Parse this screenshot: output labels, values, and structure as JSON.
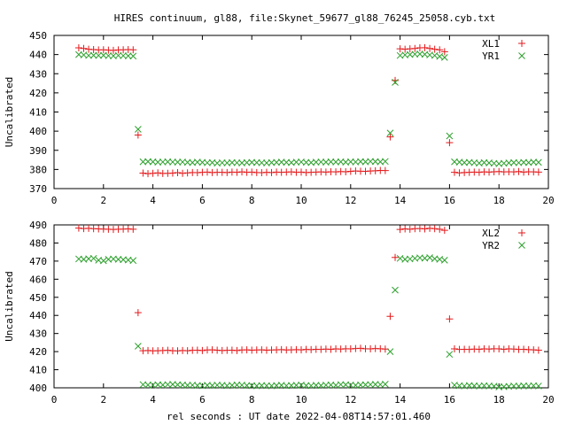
{
  "title": "HIRES continuum, gl88, file:Skynet_59677_gl88_76245_25058.cyb.txt",
  "xlabel": "rel seconds : UT date 2022-04-08T14:57:01.460",
  "colors": {
    "xl": "#e41a1c",
    "yr": "#2ca02c",
    "frame": "#000000"
  },
  "chart_data": [
    {
      "type": "scatter",
      "ylabel": "Uncalibrated",
      "xlim": [
        0,
        20
      ],
      "ylim": [
        370,
        450
      ],
      "xticks": [
        0,
        2,
        4,
        6,
        8,
        10,
        12,
        14,
        16,
        18,
        20
      ],
      "yticks": [
        370,
        380,
        390,
        400,
        410,
        420,
        430,
        440,
        450
      ],
      "legend_position": "top-right",
      "series": [
        {
          "name": "XL1",
          "marker": "plus",
          "color": "#e41a1c",
          "x": [
            1.0,
            1.2,
            1.4,
            1.6,
            1.8,
            2.0,
            2.2,
            2.4,
            2.6,
            2.8,
            3.0,
            3.2,
            3.4,
            3.6,
            3.8,
            4.0,
            4.2,
            4.4,
            4.6,
            4.8,
            5.0,
            5.2,
            5.4,
            5.6,
            5.8,
            6.0,
            6.2,
            6.4,
            6.6,
            6.8,
            7.0,
            7.2,
            7.4,
            7.6,
            7.8,
            8.0,
            8.2,
            8.4,
            8.6,
            8.8,
            9.0,
            9.2,
            9.4,
            9.6,
            9.8,
            10.0,
            10.2,
            10.4,
            10.6,
            10.8,
            11.0,
            11.2,
            11.4,
            11.6,
            11.8,
            12.0,
            12.2,
            12.4,
            12.6,
            12.8,
            13.0,
            13.2,
            13.4,
            13.6,
            13.8,
            14.0,
            14.2,
            14.4,
            14.6,
            14.8,
            15.0,
            15.2,
            15.4,
            15.6,
            15.8,
            16.0,
            16.2,
            16.4,
            16.6,
            16.8,
            17.0,
            17.2,
            17.4,
            17.6,
            17.8,
            18.0,
            18.2,
            18.4,
            18.6,
            18.8,
            19.0,
            19.2,
            19.4,
            19.6
          ],
          "y": [
            443.5,
            443.2,
            442.8,
            442.6,
            442.4,
            442.5,
            442.3,
            442.2,
            442.4,
            442.5,
            442.6,
            442.5,
            398.0,
            378.1,
            377.8,
            378.0,
            378.2,
            377.9,
            378.0,
            378.1,
            378.3,
            378.0,
            378.2,
            378.4,
            378.3,
            378.5,
            378.6,
            378.4,
            378.5,
            378.5,
            378.4,
            378.6,
            378.5,
            378.7,
            378.5,
            378.6,
            378.4,
            378.3,
            378.5,
            378.4,
            378.6,
            378.5,
            378.6,
            378.7,
            378.5,
            378.6,
            378.4,
            378.5,
            378.6,
            378.7,
            378.6,
            378.8,
            378.7,
            378.9,
            378.8,
            379.0,
            379.2,
            379.1,
            379.0,
            379.2,
            379.3,
            379.5,
            379.4,
            397.0,
            426.5,
            443.0,
            442.8,
            443.0,
            443.2,
            443.5,
            443.6,
            443.2,
            442.8,
            442.5,
            441.5,
            394.0,
            378.5,
            378.2,
            378.4,
            378.5,
            378.6,
            378.5,
            378.7,
            378.6,
            378.8,
            378.9,
            378.7,
            378.8,
            378.7,
            378.9,
            378.6,
            378.8,
            378.7,
            378.6
          ]
        },
        {
          "name": "YR1",
          "marker": "cross",
          "color": "#2ca02c",
          "x": [
            1.0,
            1.2,
            1.4,
            1.6,
            1.8,
            2.0,
            2.2,
            2.4,
            2.6,
            2.8,
            3.0,
            3.2,
            3.4,
            3.6,
            3.8,
            4.0,
            4.2,
            4.4,
            4.6,
            4.8,
            5.0,
            5.2,
            5.4,
            5.6,
            5.8,
            6.0,
            6.2,
            6.4,
            6.6,
            6.8,
            7.0,
            7.2,
            7.4,
            7.6,
            7.8,
            8.0,
            8.2,
            8.4,
            8.6,
            8.8,
            9.0,
            9.2,
            9.4,
            9.6,
            9.8,
            10.0,
            10.2,
            10.4,
            10.6,
            10.8,
            11.0,
            11.2,
            11.4,
            11.6,
            11.8,
            12.0,
            12.2,
            12.4,
            12.6,
            12.8,
            13.0,
            13.2,
            13.4,
            13.6,
            13.8,
            14.0,
            14.2,
            14.4,
            14.6,
            14.8,
            15.0,
            15.2,
            15.4,
            15.6,
            15.8,
            16.0,
            16.2,
            16.4,
            16.6,
            16.8,
            17.0,
            17.2,
            17.4,
            17.6,
            17.8,
            18.0,
            18.2,
            18.4,
            18.6,
            18.8,
            19.0,
            19.2,
            19.4,
            19.6
          ],
          "y": [
            440.0,
            439.8,
            439.5,
            439.6,
            439.5,
            439.6,
            439.4,
            439.3,
            439.5,
            439.4,
            439.3,
            439.2,
            401.0,
            384.0,
            384.1,
            384.0,
            383.8,
            383.9,
            384.0,
            383.9,
            383.8,
            383.9,
            383.7,
            383.6,
            383.8,
            383.7,
            383.5,
            383.6,
            383.3,
            383.5,
            383.4,
            383.6,
            383.5,
            383.4,
            383.6,
            383.7,
            383.6,
            383.5,
            383.4,
            383.6,
            383.7,
            383.8,
            383.7,
            383.6,
            383.8,
            383.9,
            383.7,
            383.6,
            383.8,
            383.9,
            383.8,
            384.0,
            383.9,
            384.0,
            383.8,
            384.0,
            383.9,
            384.1,
            384.0,
            384.2,
            384.1,
            384.0,
            384.2,
            399.0,
            425.5,
            439.5,
            439.8,
            440.0,
            440.2,
            440.3,
            440.1,
            439.8,
            439.5,
            439.0,
            438.5,
            397.5,
            384.0,
            383.8,
            383.6,
            383.7,
            383.5,
            383.3,
            383.6,
            383.4,
            383.2,
            383.0,
            383.2,
            383.4,
            383.6,
            383.5,
            383.7,
            383.6,
            383.8,
            383.7
          ]
        }
      ]
    },
    {
      "type": "scatter",
      "ylabel": "Uncalibrated",
      "xlim": [
        0,
        20
      ],
      "ylim": [
        400,
        490
      ],
      "xticks": [
        0,
        2,
        4,
        6,
        8,
        10,
        12,
        14,
        16,
        18,
        20
      ],
      "yticks": [
        400,
        410,
        420,
        430,
        440,
        450,
        460,
        470,
        480,
        490
      ],
      "legend_position": "top-right",
      "series": [
        {
          "name": "XL2",
          "marker": "plus",
          "color": "#e41a1c",
          "x": [
            1.0,
            1.2,
            1.4,
            1.6,
            1.8,
            2.0,
            2.2,
            2.4,
            2.6,
            2.8,
            3.0,
            3.2,
            3.4,
            3.6,
            3.8,
            4.0,
            4.2,
            4.4,
            4.6,
            4.8,
            5.0,
            5.2,
            5.4,
            5.6,
            5.8,
            6.0,
            6.2,
            6.4,
            6.6,
            6.8,
            7.0,
            7.2,
            7.4,
            7.6,
            7.8,
            8.0,
            8.2,
            8.4,
            8.6,
            8.8,
            9.0,
            9.2,
            9.4,
            9.6,
            9.8,
            10.0,
            10.2,
            10.4,
            10.6,
            10.8,
            11.0,
            11.2,
            11.4,
            11.6,
            11.8,
            12.0,
            12.2,
            12.4,
            12.6,
            12.8,
            13.0,
            13.2,
            13.4,
            13.6,
            13.8,
            14.0,
            14.2,
            14.4,
            14.6,
            14.8,
            15.0,
            15.2,
            15.4,
            15.6,
            15.8,
            16.0,
            16.2,
            16.4,
            16.6,
            16.8,
            17.0,
            17.2,
            17.4,
            17.6,
            17.8,
            18.0,
            18.2,
            18.4,
            18.6,
            18.8,
            19.0,
            19.2,
            19.4,
            19.6
          ],
          "y": [
            488.2,
            488.0,
            488.1,
            487.9,
            487.8,
            487.7,
            487.6,
            487.5,
            487.6,
            487.7,
            487.8,
            487.6,
            441.5,
            420.5,
            420.6,
            420.4,
            420.5,
            420.6,
            420.7,
            420.5,
            420.4,
            420.6,
            420.5,
            420.7,
            420.8,
            420.6,
            420.9,
            421.0,
            420.8,
            420.6,
            420.7,
            420.8,
            420.6,
            420.9,
            421.0,
            420.8,
            420.9,
            421.0,
            420.8,
            420.9,
            421.0,
            421.1,
            420.9,
            421.0,
            421.1,
            421.0,
            421.2,
            421.1,
            421.3,
            421.2,
            421.4,
            421.3,
            421.5,
            421.4,
            421.6,
            421.5,
            421.7,
            421.8,
            421.6,
            421.5,
            421.7,
            421.6,
            421.4,
            439.5,
            472.0,
            487.5,
            487.8,
            487.6,
            487.9,
            488.0,
            487.8,
            488.1,
            487.9,
            487.6,
            487.0,
            438.0,
            421.5,
            421.2,
            421.3,
            421.2,
            421.4,
            421.3,
            421.5,
            421.4,
            421.6,
            421.5,
            421.3,
            421.5,
            421.4,
            421.2,
            421.3,
            421.1,
            421.0,
            420.8
          ]
        },
        {
          "name": "YR2",
          "marker": "cross",
          "color": "#2ca02c",
          "x": [
            1.0,
            1.2,
            1.4,
            1.6,
            1.8,
            2.0,
            2.2,
            2.4,
            2.6,
            2.8,
            3.0,
            3.2,
            3.4,
            3.6,
            3.8,
            4.0,
            4.2,
            4.4,
            4.6,
            4.8,
            5.0,
            5.2,
            5.4,
            5.6,
            5.8,
            6.0,
            6.2,
            6.4,
            6.6,
            6.8,
            7.0,
            7.2,
            7.4,
            7.6,
            7.8,
            8.0,
            8.2,
            8.4,
            8.6,
            8.8,
            9.0,
            9.2,
            9.4,
            9.6,
            9.8,
            10.0,
            10.2,
            10.4,
            10.6,
            10.8,
            11.0,
            11.2,
            11.4,
            11.6,
            11.8,
            12.0,
            12.2,
            12.4,
            12.6,
            12.8,
            13.0,
            13.2,
            13.4,
            13.6,
            13.8,
            14.0,
            14.2,
            14.4,
            14.6,
            14.8,
            15.0,
            15.2,
            15.4,
            15.6,
            15.8,
            16.0,
            16.2,
            16.4,
            16.6,
            16.8,
            17.0,
            17.2,
            17.4,
            17.6,
            17.8,
            18.0,
            18.2,
            18.4,
            18.6,
            18.8,
            19.0,
            19.2,
            19.4,
            19.6
          ],
          "y": [
            471.2,
            471.0,
            471.3,
            471.5,
            470.5,
            470.2,
            471.0,
            471.2,
            471.0,
            470.8,
            470.6,
            470.3,
            423.0,
            401.8,
            401.6,
            401.5,
            401.7,
            401.6,
            401.8,
            401.9,
            401.7,
            401.6,
            401.4,
            401.5,
            401.3,
            401.2,
            401.4,
            401.3,
            401.5,
            401.4,
            401.2,
            401.4,
            401.6,
            401.5,
            401.3,
            401.2,
            401.1,
            401.3,
            401.2,
            401.1,
            401.3,
            401.4,
            401.2,
            401.3,
            401.4,
            401.5,
            401.3,
            401.2,
            401.4,
            401.3,
            401.5,
            401.6,
            401.4,
            401.8,
            401.7,
            401.5,
            401.4,
            401.6,
            401.7,
            401.8,
            401.9,
            401.8,
            402.0,
            420.0,
            454.0,
            471.5,
            471.0,
            471.2,
            471.5,
            471.8,
            471.6,
            471.9,
            471.3,
            471.0,
            470.5,
            418.5,
            401.5,
            401.2,
            401.0,
            401.3,
            401.1,
            401.0,
            401.2,
            401.0,
            400.9,
            400.5,
            400.6,
            400.8,
            401.0,
            400.9,
            401.1,
            401.0,
            401.2,
            401.0
          ]
        }
      ]
    }
  ]
}
